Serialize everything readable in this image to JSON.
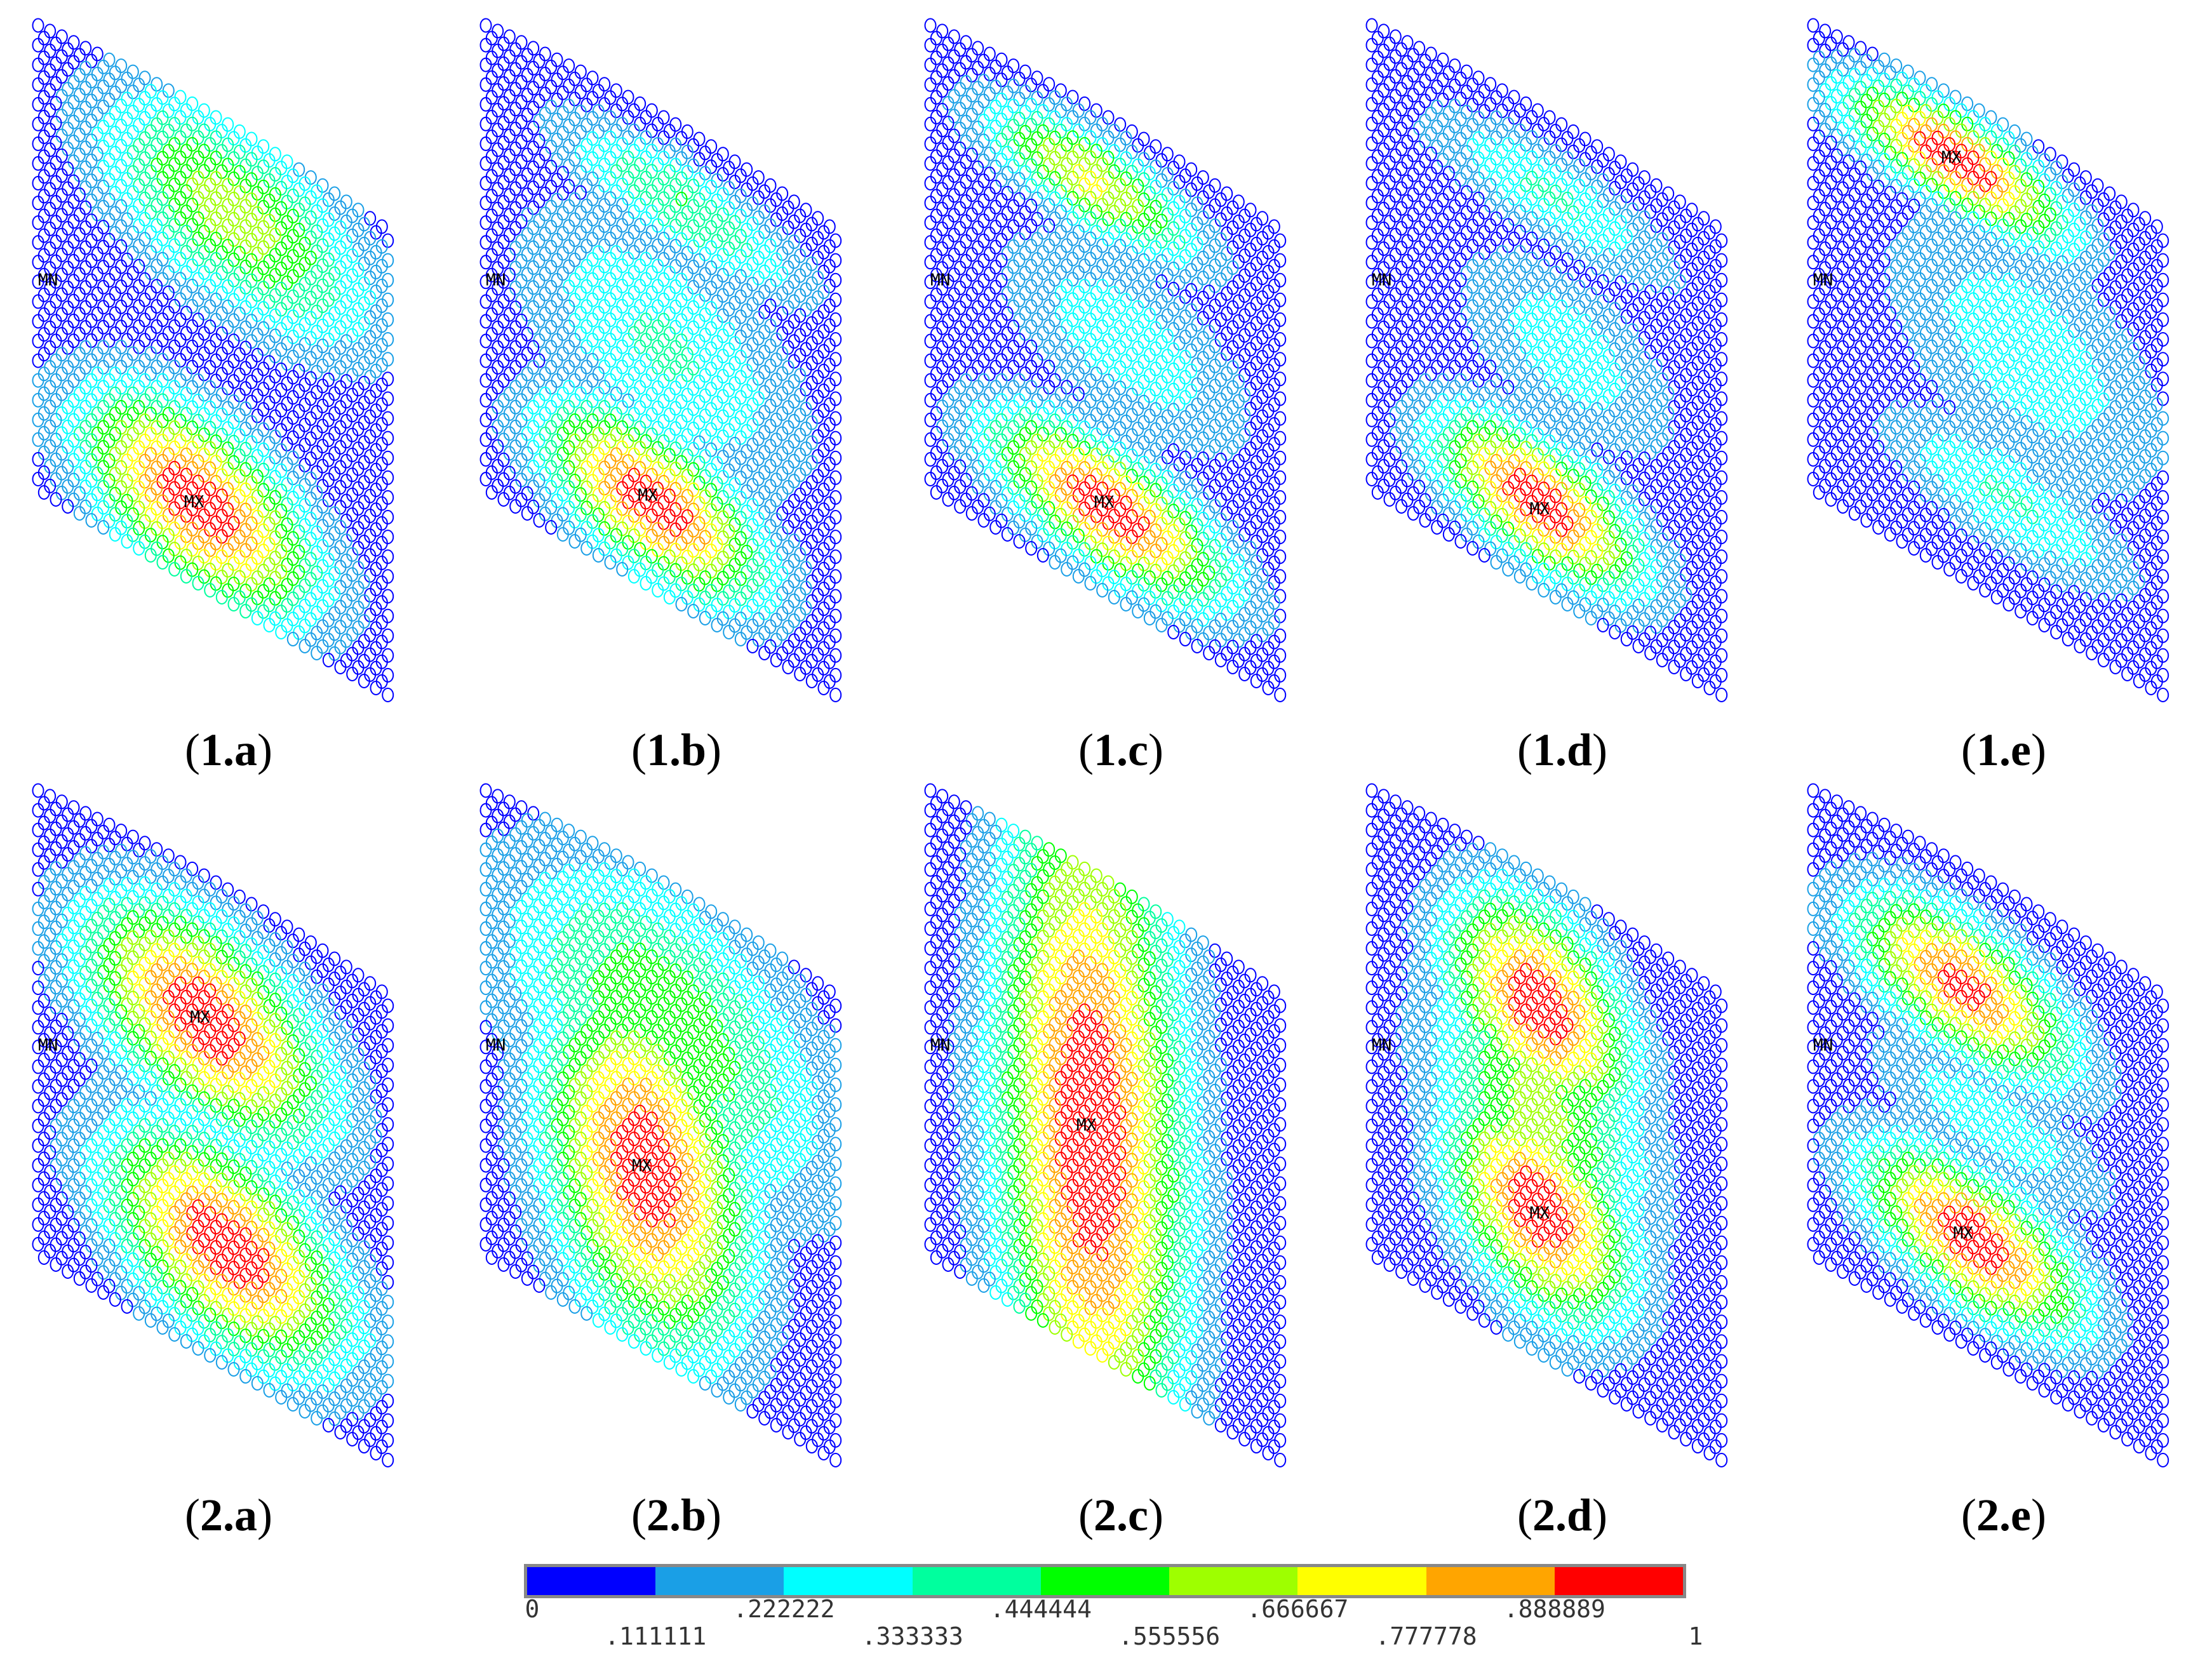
{
  "panels": [
    {
      "caption": "(1.a)",
      "caption_bold": "1.a",
      "mn": "MN",
      "mx": "MX",
      "mode": "1a"
    },
    {
      "caption": "(1.b)",
      "caption_bold": "1.b",
      "mn": "MN",
      "mx": "MX",
      "mode": "1b"
    },
    {
      "caption": "(1.c)",
      "caption_bold": "1.c",
      "mn": "MN",
      "mx": "MX",
      "mode": "1c"
    },
    {
      "caption": "(1.d)",
      "caption_bold": "1.d",
      "mn": "MN",
      "mx": "MX",
      "mode": "1d"
    },
    {
      "caption": "(1.e)",
      "caption_bold": "1.e",
      "mn": "MN",
      "mx": "MX",
      "mode": "1e"
    },
    {
      "caption": "(2.a)",
      "caption_bold": "2.a",
      "mn": "MN",
      "mx": "MX",
      "mode": "2a"
    },
    {
      "caption": "(2.b)",
      "caption_bold": "2.b",
      "mn": "MN",
      "mx": "MX",
      "mode": "2b"
    },
    {
      "caption": "(2.c)",
      "caption_bold": "2.c",
      "mn": "MN",
      "mx": "MX",
      "mode": "2c"
    },
    {
      "caption": "(2.d)",
      "caption_bold": "2.d",
      "mn": "MN",
      "mx": "MX",
      "mode": "2d"
    },
    {
      "caption": "(2.e)",
      "caption_bold": "2.e",
      "mn": "MN",
      "mx": "MX",
      "mode": "2e"
    }
  ],
  "legend": {
    "colors": [
      "#0000ff",
      "#1a9fe6",
      "#00ffff",
      "#00ff9e",
      "#00ff00",
      "#9eff00",
      "#ffff00",
      "#ffa500",
      "#ff0000"
    ],
    "top_labels": [
      "0",
      ".222222",
      ".444444",
      ".666667",
      ".888889"
    ],
    "bottom_labels": [
      ".111111",
      ".333333",
      ".555556",
      ".777778",
      "1"
    ]
  }
}
